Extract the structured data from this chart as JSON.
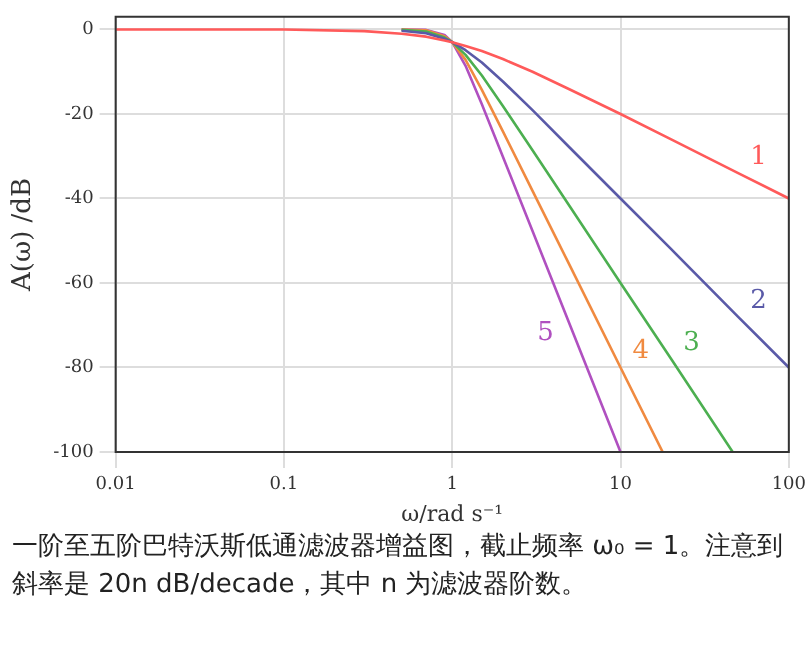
{
  "chart_data": {
    "type": "line",
    "xlabel": "ω/rad s⁻¹",
    "ylabel": "A(ω) /dB",
    "log": "x",
    "xlim": [
      0.01,
      100
    ],
    "xticks": [
      0.01,
      0.1,
      1,
      10,
      100
    ],
    "ylim": [
      -100,
      3
    ],
    "yticks": [
      -100,
      -80,
      -60,
      -40,
      -20,
      0
    ],
    "grid": true,
    "legend": false,
    "marker": "none",
    "line_style": "solid",
    "series": [
      {
        "name": "1",
        "color": "#ff5a5a",
        "x": [
          0.01,
          0.1,
          0.3,
          0.5,
          0.7,
          0.9,
          1,
          1.2,
          1.5,
          2,
          3,
          5,
          10,
          20,
          50,
          100
        ],
        "values": [
          0,
          0,
          -0.4,
          -1,
          -1.7,
          -2.6,
          -3,
          -3.9,
          -5.1,
          -7,
          -10,
          -14.2,
          -20,
          -26,
          -34,
          -40
        ]
      },
      {
        "name": "2",
        "color": "#5a5aa8",
        "x": [
          0.5,
          0.7,
          0.9,
          1,
          1.2,
          1.5,
          2,
          3,
          5,
          10,
          20,
          50,
          100
        ],
        "values": [
          -0.3,
          -0.9,
          -2.2,
          -3,
          -4.9,
          -7.8,
          -12.3,
          -19.1,
          -28,
          -40,
          -52,
          -68,
          -80
        ]
      },
      {
        "name": "3",
        "color": "#4caf50",
        "x": [
          0.5,
          0.7,
          0.9,
          1,
          1.2,
          1.5,
          2,
          3,
          5,
          10,
          20,
          46.4
        ],
        "values": [
          -0.1,
          -0.5,
          -1.9,
          -3,
          -6,
          -10.9,
          -18.1,
          -28.6,
          -41.9,
          -60,
          -78,
          -100
        ]
      },
      {
        "name": "4",
        "color": "#f08a40",
        "x": [
          0.5,
          0.7,
          0.9,
          1,
          1.2,
          1.5,
          2,
          3,
          5,
          10,
          17.8
        ],
        "values": [
          0,
          -0.2,
          -1.6,
          -3,
          -7.2,
          -14.3,
          -24.1,
          -38.2,
          -55.9,
          -80,
          -100
        ]
      },
      {
        "name": "5",
        "color": "#b050c0",
        "x": [
          0.5,
          0.7,
          0.9,
          1,
          1.2,
          1.5,
          2,
          3,
          5,
          10
        ],
        "values": [
          0,
          -0.1,
          -1.3,
          -3,
          -8.6,
          -17.7,
          -30.1,
          -47.7,
          -69.9,
          -100
        ]
      }
    ],
    "annotations": [
      "一阶至五阶巴特沃斯低通滤波器增益图，截止频率 ω₀ = 1。注意到斜率是 20n dB/decade，其中 n 为滤波器阶数。"
    ]
  }
}
